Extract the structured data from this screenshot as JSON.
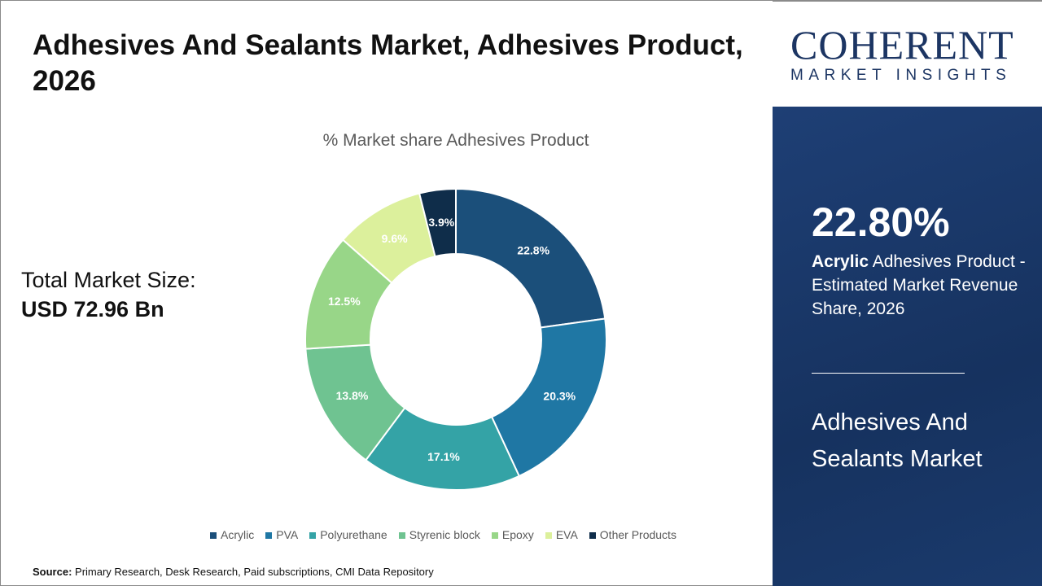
{
  "header": {
    "title": "Adhesives And Sealants Market, Adhesives Product, 2026"
  },
  "total": {
    "label": "Total Market Size:",
    "value": "USD 72.96 Bn"
  },
  "source": {
    "label": "Source:",
    "text": "Primary Research, Desk Research, Paid subscriptions, CMI Data Repository"
  },
  "logo": {
    "line1": "COHERENT",
    "line2": "MARKET INSIGHTS"
  },
  "side": {
    "percent": "22.80%",
    "highlight": "Acrylic",
    "desc": " Adhesives Product - Estimated Market Revenue Share, 2026",
    "market": "Adhesives And Sealants Market"
  },
  "chart_data": {
    "type": "pie",
    "donut": true,
    "title": "% Market share Adhesives Product",
    "categories": [
      "Acrylic",
      "PVA",
      "Polyurethane",
      "Styrenic block",
      "Epoxy",
      "EVA",
      "Other Products"
    ],
    "values": [
      22.8,
      20.3,
      17.1,
      13.8,
      12.5,
      9.6,
      3.9
    ],
    "labels": [
      "22.8%",
      "20.3%",
      "17.1%",
      "13.8%",
      "12.5%",
      "9.6%",
      "3.9%"
    ],
    "colors": [
      "#1b4f7a",
      "#1f77a4",
      "#34a3a6",
      "#6fc391",
      "#98d688",
      "#dcf09c",
      "#0f2d4a"
    ],
    "legend_position": "bottom"
  }
}
